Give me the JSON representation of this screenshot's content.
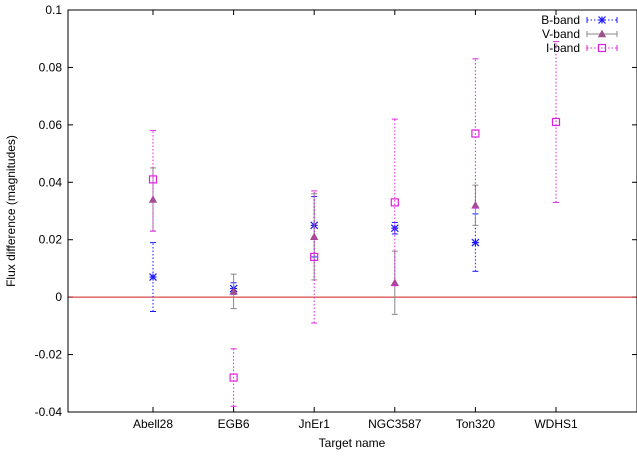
{
  "chart_data": {
    "type": "scatter",
    "xlabel": "Target name",
    "ylabel": "Flux difference (magnitudes)",
    "ylim": [
      -0.04,
      0.1
    ],
    "yticks": [
      -0.04,
      -0.02,
      0,
      0.02,
      0.04,
      0.06,
      0.08,
      0.1
    ],
    "ytick_labels": [
      "-0.04",
      "-0.02",
      "0",
      "0.02",
      "0.04",
      "0.06",
      "0.08",
      "0.1"
    ],
    "categories": [
      "Abell28",
      "EGB6",
      "JnEr1",
      "NGC3587",
      "Ton320",
      "WDHS1"
    ],
    "reference_line": {
      "y": 0,
      "color": "#d11a1a"
    },
    "legend_position": "top-right",
    "series": [
      {
        "name": "B-band",
        "color": "#1a1aff",
        "marker": "asterisk",
        "line_style": "dotted",
        "points": [
          {
            "category": "Abell28",
            "y": 0.007,
            "err_low": -0.005,
            "err_high": 0.019
          },
          {
            "category": "EGB6",
            "y": 0.003,
            "err_low": 0.001,
            "err_high": 0.005
          },
          {
            "category": "JnEr1",
            "y": 0.025,
            "err_low": 0.014,
            "err_high": 0.035
          },
          {
            "category": "NGC3587",
            "y": 0.024,
            "err_low": 0.022,
            "err_high": 0.026
          },
          {
            "category": "Ton320",
            "y": 0.019,
            "err_low": 0.009,
            "err_high": 0.029
          }
        ]
      },
      {
        "name": "V-band",
        "color": "#8a8a8a",
        "accent_color": "#a0508c",
        "marker": "triangle",
        "line_style": "solid",
        "points": [
          {
            "category": "Abell28",
            "y": 0.034,
            "err_low": 0.023,
            "err_high": 0.045
          },
          {
            "category": "EGB6",
            "y": 0.002,
            "err_low": -0.004,
            "err_high": 0.008
          },
          {
            "category": "JnEr1",
            "y": 0.021,
            "err_low": 0.006,
            "err_high": 0.036
          },
          {
            "category": "NGC3587",
            "y": 0.005,
            "err_low": -0.006,
            "err_high": 0.016
          },
          {
            "category": "Ton320",
            "y": 0.032,
            "err_low": 0.025,
            "err_high": 0.039
          }
        ]
      },
      {
        "name": "I-band",
        "color": "#e020e0",
        "marker": "open-square",
        "line_style": "dotted",
        "points": [
          {
            "category": "Abell28",
            "y": 0.041,
            "err_low": 0.023,
            "err_high": 0.058
          },
          {
            "category": "EGB6",
            "y": -0.028,
            "err_low": -0.038,
            "err_high": -0.018
          },
          {
            "category": "JnEr1",
            "y": 0.014,
            "err_low": -0.009,
            "err_high": 0.037
          },
          {
            "category": "NGC3587",
            "y": 0.033,
            "err_low": 0.004,
            "err_high": 0.062
          },
          {
            "category": "Ton320",
            "y": 0.057,
            "err_low": 0.031,
            "err_high": 0.083
          },
          {
            "category": "WDHS1",
            "y": 0.061,
            "err_low": 0.033,
            "err_high": 0.089
          }
        ]
      }
    ]
  }
}
